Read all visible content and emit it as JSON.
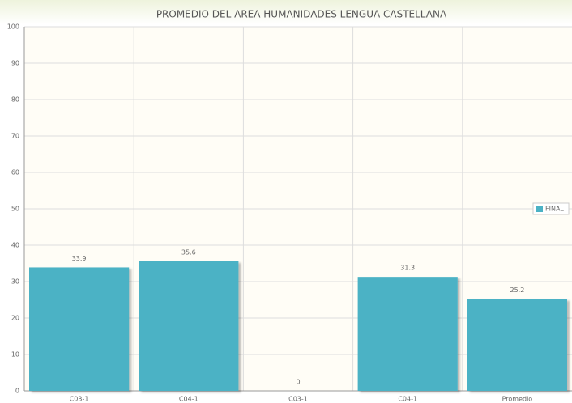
{
  "chart_data": {
    "type": "bar",
    "title": "PROMEDIO DEL AREA HUMANIDADES LENGUA CASTELLANA",
    "categories": [
      "C03-1",
      "C04-1",
      "C03-1",
      "C04-1",
      "Promedio"
    ],
    "series": [
      {
        "name": "FINAL",
        "color": "#4bb2c5",
        "values": [
          33.9,
          35.6,
          0,
          31.3,
          25.2
        ]
      }
    ],
    "ylim": [
      0,
      100
    ],
    "yticks": [
      0,
      10,
      20,
      30,
      40,
      50,
      60,
      70,
      80,
      90,
      100
    ],
    "grid": true,
    "legend": "right"
  }
}
